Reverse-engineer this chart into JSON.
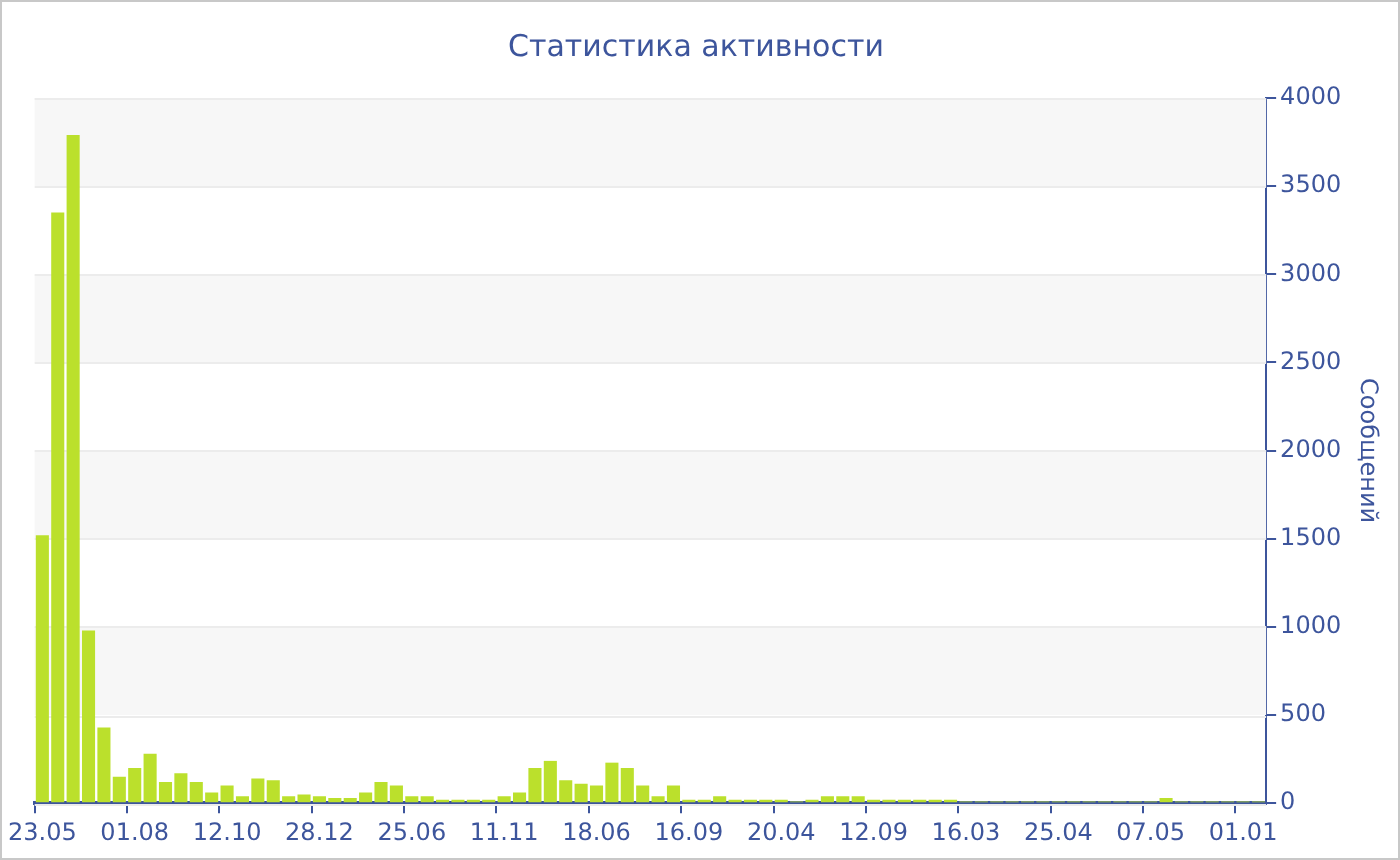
{
  "chart_data": {
    "type": "bar",
    "title": "Статистика активности",
    "ylabel": "Сообщений",
    "categories": [
      "23.05",
      null,
      null,
      null,
      null,
      null,
      "01.08",
      null,
      null,
      null,
      null,
      null,
      "12.10",
      null,
      null,
      null,
      null,
      null,
      "28.12",
      null,
      null,
      null,
      null,
      null,
      "25.06",
      null,
      null,
      null,
      null,
      null,
      "11.11",
      null,
      null,
      null,
      null,
      null,
      "18.06",
      null,
      null,
      null,
      null,
      null,
      "16.09",
      null,
      null,
      null,
      null,
      null,
      "20.04",
      null,
      null,
      null,
      null,
      null,
      "12.09",
      null,
      null,
      null,
      null,
      null,
      "16.03",
      null,
      null,
      null,
      null,
      null,
      "25.04",
      null,
      null,
      null,
      null,
      null,
      "07.05",
      null,
      null,
      null,
      null,
      null,
      "01.01",
      null
    ],
    "values": [
      1520,
      3350,
      3790,
      980,
      430,
      150,
      200,
      280,
      120,
      170,
      120,
      60,
      100,
      40,
      140,
      130,
      40,
      50,
      40,
      30,
      30,
      60,
      120,
      100,
      40,
      40,
      20,
      20,
      20,
      20,
      40,
      60,
      200,
      240,
      130,
      110,
      100,
      230,
      200,
      100,
      40,
      100,
      20,
      20,
      40,
      20,
      20,
      20,
      20,
      10,
      20,
      40,
      40,
      40,
      20,
      20,
      20,
      20,
      20,
      20,
      10,
      10,
      10,
      10,
      10,
      10,
      10,
      10,
      10,
      10,
      10,
      10,
      10,
      30,
      10,
      10,
      10,
      10,
      10,
      10
    ],
    "color": "#bbe02c",
    "ylim": [
      0,
      4000
    ],
    "yticks": [
      0,
      500,
      1000,
      1500,
      2000,
      2500,
      3000,
      3500,
      4000
    ],
    "grid": "y",
    "legend": false
  }
}
